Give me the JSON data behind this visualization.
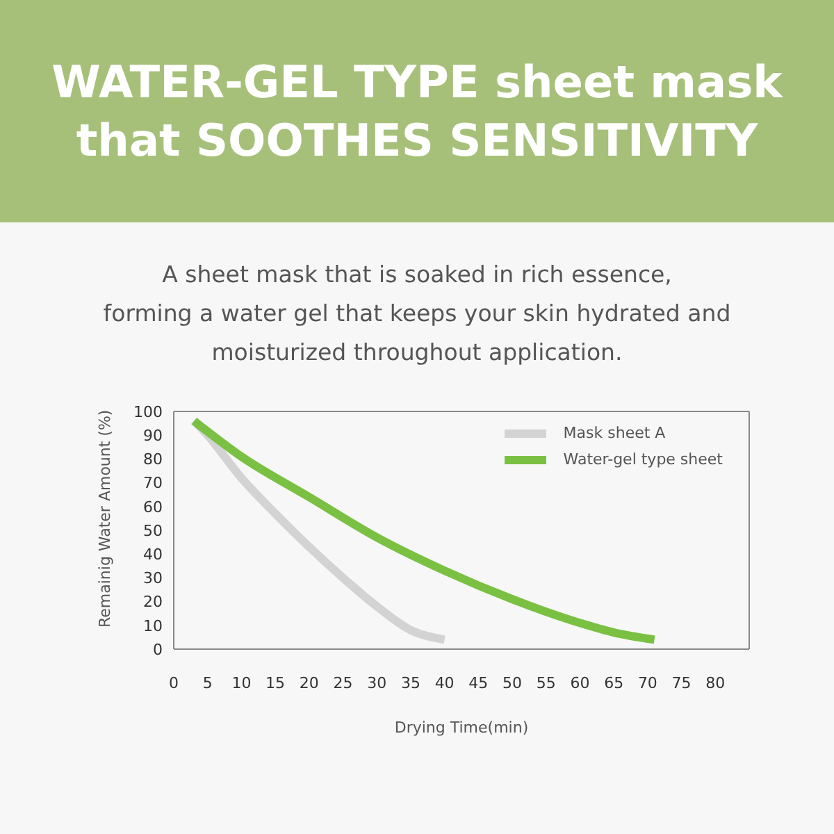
{
  "chart_data": {
    "type": "line",
    "title": "WATER-GEL TYPE sheet mask\nthat SOOTHES SENSITIVITY",
    "subtitle": "A sheet mask that is soaked in rich essence,\nforming a water gel that keeps your skin hydrated and\nmoisturized throughout application.",
    "xlabel": "Drying Time(min)",
    "ylabel": "Remainig Water Amount (%)",
    "series": [
      {
        "name": "Mask sheet A",
        "color": "#d3d3d3",
        "x": [
          3,
          5,
          10,
          15,
          20,
          25,
          30,
          35,
          40
        ],
        "values": [
          96,
          90,
          72,
          57,
          43,
          30,
          18,
          8,
          4
        ]
      },
      {
        "name": "Water-gel type sheet",
        "color": "#7ac143",
        "x": [
          3,
          10,
          20,
          30,
          40,
          50,
          60,
          65,
          71
        ],
        "values": [
          96,
          81,
          64,
          47,
          33,
          21,
          11,
          7,
          4
        ]
      }
    ],
    "xlim": [
      0,
      85
    ],
    "xticks": [
      0,
      5,
      10,
      15,
      20,
      25,
      30,
      35,
      40,
      45,
      50,
      55,
      60,
      65,
      70,
      75,
      80
    ],
    "ylim": [
      0,
      100
    ],
    "yticks": [
      0,
      10,
      20,
      30,
      40,
      50,
      60,
      70,
      80,
      90,
      100
    ],
    "grid": false,
    "legend": "top right",
    "marker": "none",
    "line_style": "solid"
  }
}
